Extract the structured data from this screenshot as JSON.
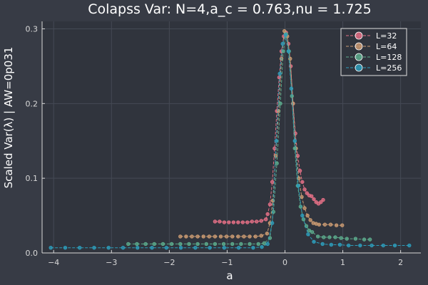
{
  "chart_data": {
    "type": "line",
    "title": "Colapss Var: N=4,a_c = 0.763,nu = 1.725",
    "xlabel": "a",
    "ylabel": "Scaled Var(λ) | AW=0p031",
    "xlim": [
      -4.2,
      2.35
    ],
    "ylim": [
      0.0,
      0.31
    ],
    "xticks": [
      -4,
      -3,
      -2,
      -1,
      0,
      1,
      2
    ],
    "yticks": [
      0.0,
      0.1,
      0.2,
      0.3
    ],
    "ytick_labels": [
      "0.0",
      "0.1",
      "0.2",
      "0.3"
    ],
    "grid": true,
    "legend_position": "top-right",
    "colors": {
      "background": "#373b45",
      "plot_background": "#30343d",
      "grid": "#454a55",
      "text": "#ffffff",
      "axis": "#d8d8d8"
    },
    "series": [
      {
        "name": "L=32",
        "color": "#e26f85",
        "x": [
          -1.21,
          -1.13,
          -1.05,
          -0.97,
          -0.89,
          -0.81,
          -0.73,
          -0.65,
          -0.57,
          -0.49,
          -0.41,
          -0.33,
          -0.3,
          -0.26,
          -0.22,
          -0.18,
          -0.14,
          -0.1,
          -0.06,
          -0.02,
          0.02,
          0.06,
          0.1,
          0.14,
          0.18,
          0.22,
          0.26,
          0.3,
          0.34,
          0.38,
          0.42,
          0.46,
          0.5,
          0.54,
          0.58,
          0.62,
          0.66
        ],
        "y": [
          0.042,
          0.042,
          0.041,
          0.041,
          0.041,
          0.041,
          0.041,
          0.041,
          0.042,
          0.042,
          0.043,
          0.045,
          0.052,
          0.065,
          0.095,
          0.14,
          0.19,
          0.235,
          0.27,
          0.29,
          0.295,
          0.28,
          0.25,
          0.2,
          0.16,
          0.13,
          0.11,
          0.095,
          0.085,
          0.08,
          0.077,
          0.076,
          0.072,
          0.068,
          0.066,
          0.068,
          0.071
        ]
      },
      {
        "name": "L=64",
        "color": "#c99a72",
        "x": [
          -1.81,
          -1.71,
          -1.61,
          -1.51,
          -1.41,
          -1.31,
          -1.21,
          -1.11,
          -1.01,
          -0.91,
          -0.81,
          -0.71,
          -0.61,
          -0.51,
          -0.41,
          -0.31,
          -0.26,
          -0.21,
          -0.16,
          -0.11,
          -0.06,
          -0.01,
          0.04,
          0.09,
          0.14,
          0.19,
          0.24,
          0.29,
          0.34,
          0.39,
          0.44,
          0.49,
          0.54,
          0.59,
          0.69,
          0.79,
          0.89,
          0.99
        ],
        "y": [
          0.022,
          0.022,
          0.022,
          0.022,
          0.022,
          0.022,
          0.022,
          0.022,
          0.022,
          0.022,
          0.022,
          0.022,
          0.022,
          0.022,
          0.023,
          0.026,
          0.04,
          0.07,
          0.13,
          0.19,
          0.26,
          0.297,
          0.29,
          0.26,
          0.2,
          0.14,
          0.1,
          0.075,
          0.06,
          0.05,
          0.044,
          0.04,
          0.039,
          0.038,
          0.038,
          0.038,
          0.037,
          0.037
        ]
      },
      {
        "name": "L=128",
        "color": "#5cab8c",
        "x": [
          -2.71,
          -2.56,
          -2.41,
          -2.26,
          -2.11,
          -1.96,
          -1.81,
          -1.66,
          -1.51,
          -1.36,
          -1.21,
          -1.06,
          -0.91,
          -0.76,
          -0.61,
          -0.46,
          -0.36,
          -0.26,
          -0.2,
          -0.14,
          -0.08,
          -0.03,
          0.02,
          0.07,
          0.12,
          0.17,
          0.22,
          0.27,
          0.32,
          0.37,
          0.42,
          0.47,
          0.57,
          0.67,
          0.77,
          0.87,
          0.97,
          1.07,
          1.22,
          1.37,
          1.47
        ],
        "y": [
          0.012,
          0.012,
          0.012,
          0.012,
          0.012,
          0.012,
          0.012,
          0.012,
          0.012,
          0.012,
          0.012,
          0.012,
          0.012,
          0.012,
          0.012,
          0.012,
          0.013,
          0.02,
          0.055,
          0.12,
          0.2,
          0.27,
          0.293,
          0.27,
          0.21,
          0.14,
          0.09,
          0.062,
          0.045,
          0.036,
          0.03,
          0.028,
          0.022,
          0.021,
          0.021,
          0.021,
          0.02,
          0.019,
          0.019,
          0.018,
          0.018
        ]
      },
      {
        "name": "L=256",
        "color": "#2d9cba",
        "x": [
          -4.05,
          -3.8,
          -3.55,
          -3.3,
          -3.05,
          -2.8,
          -2.55,
          -2.3,
          -2.05,
          -1.8,
          -1.55,
          -1.3,
          -1.05,
          -0.8,
          -0.55,
          -0.4,
          -0.3,
          -0.22,
          -0.15,
          -0.09,
          -0.04,
          0.01,
          0.06,
          0.11,
          0.17,
          0.23,
          0.3,
          0.4,
          0.5,
          0.65,
          0.8,
          0.95,
          1.1,
          1.3,
          1.5,
          1.7,
          1.9,
          2.15
        ],
        "y": [
          0.007,
          0.007,
          0.007,
          0.007,
          0.007,
          0.007,
          0.007,
          0.007,
          0.007,
          0.007,
          0.007,
          0.007,
          0.007,
          0.007,
          0.007,
          0.008,
          0.012,
          0.04,
          0.15,
          0.24,
          0.28,
          0.292,
          0.27,
          0.22,
          0.15,
          0.09,
          0.05,
          0.025,
          0.015,
          0.012,
          0.011,
          0.011,
          0.01,
          0.01,
          0.01,
          0.01,
          0.01,
          0.01
        ]
      }
    ]
  }
}
